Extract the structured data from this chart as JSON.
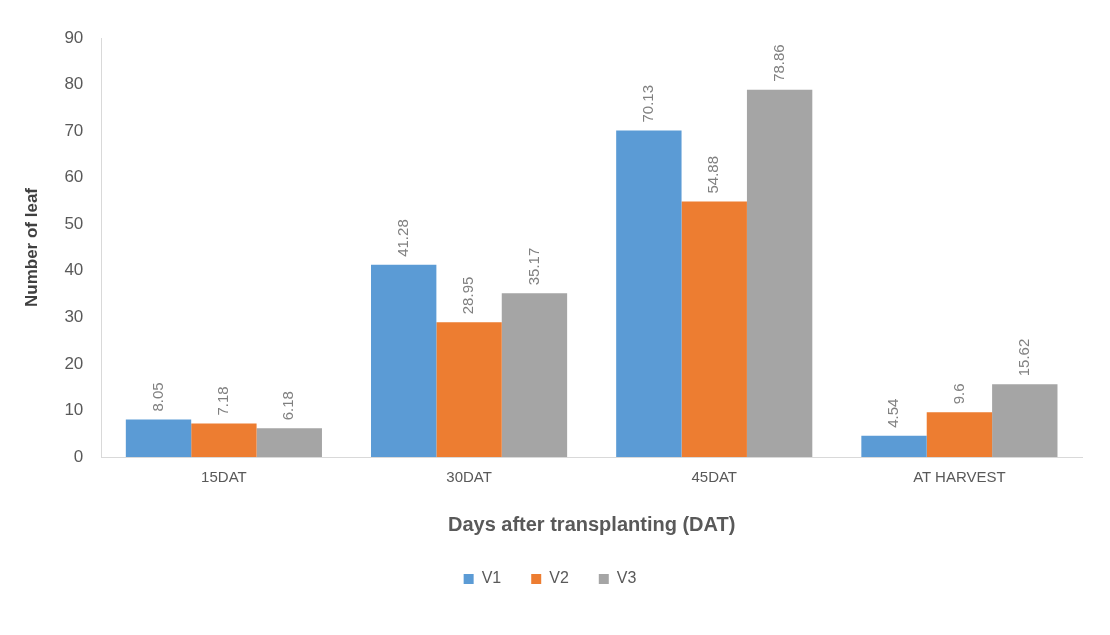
{
  "chart_data": {
    "type": "bar",
    "xlabel": "Days after transplanting (DAT)",
    "ylabel": "Number of leaf",
    "categories": [
      "15DAT",
      "30DAT",
      "45DAT",
      "AT HARVEST"
    ],
    "series": [
      {
        "name": "V1",
        "color": "#5b9bd5",
        "values": [
          8.05,
          41.28,
          70.13,
          4.54
        ]
      },
      {
        "name": "V2",
        "color": "#ed7d31",
        "values": [
          7.18,
          28.95,
          54.88,
          9.6
        ]
      },
      {
        "name": "V3",
        "color": "#a5a5a5",
        "values": [
          6.18,
          35.17,
          78.86,
          15.62
        ]
      }
    ],
    "ylim": [
      0,
      90
    ],
    "yticks": [
      0,
      10,
      20,
      30,
      40,
      50,
      60,
      70,
      80,
      90
    ],
    "grid": false,
    "legend": "bottom",
    "data_labels": true
  }
}
